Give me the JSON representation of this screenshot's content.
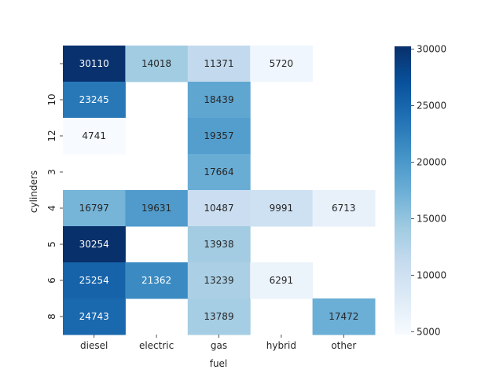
{
  "chart_data": {
    "type": "heatmap",
    "title": "",
    "xlabel": "fuel",
    "ylabel": "cylinders",
    "x_categories": [
      "diesel",
      "electric",
      "gas",
      "hybrid",
      "other"
    ],
    "y_categories": [
      "",
      "10",
      "12",
      "3",
      "4",
      "5",
      "6",
      "8"
    ],
    "values": [
      [
        30110,
        14018,
        11371,
        5720,
        null
      ],
      [
        23245,
        null,
        18439,
        null,
        null
      ],
      [
        4741,
        null,
        19357,
        null,
        null
      ],
      [
        null,
        null,
        17664,
        null,
        null
      ],
      [
        16797,
        19631,
        10487,
        9991,
        6713
      ],
      [
        30254,
        null,
        13938,
        null,
        null
      ],
      [
        25254,
        21362,
        13239,
        6291,
        null
      ],
      [
        24743,
        null,
        13789,
        null,
        17472
      ]
    ],
    "colormap": "Blues",
    "vmin": 4741,
    "vmax": 30254,
    "colorbar_ticks": [
      5000,
      10000,
      15000,
      20000,
      25000,
      30000
    ],
    "colorbar_tick_labels": [
      "5000",
      "10000",
      "15000",
      "20000",
      "25000",
      "30000"
    ],
    "annotated": true,
    "grid": false
  }
}
